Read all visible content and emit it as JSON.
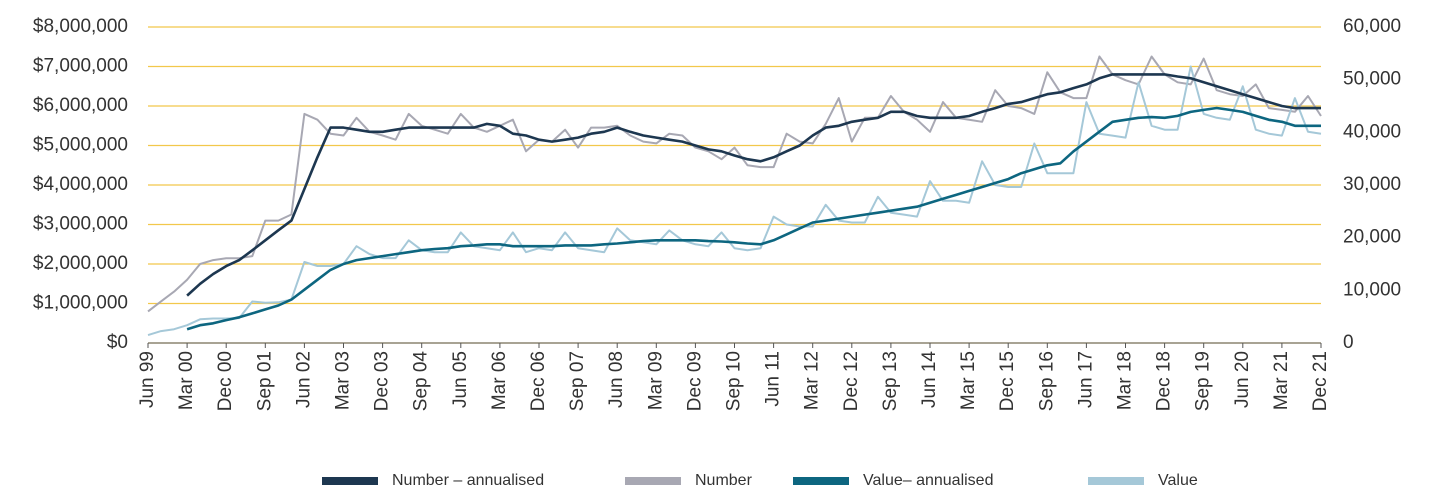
{
  "chart_data": {
    "type": "line",
    "categories": [
      "Jun 99",
      null,
      null,
      "Mar 00",
      null,
      null,
      "Dec 00",
      null,
      null,
      "Sep 01",
      null,
      null,
      "Jun 02",
      null,
      null,
      "Mar 03",
      null,
      null,
      "Dec 03",
      null,
      null,
      "Sep 04",
      null,
      null,
      "Jun 05",
      null,
      null,
      "Mar 06",
      null,
      null,
      "Dec 06",
      null,
      null,
      "Sep 07",
      null,
      null,
      "Jun 08",
      null,
      null,
      "Mar 09",
      null,
      null,
      "Dec 09",
      null,
      null,
      "Sep 10",
      null,
      null,
      "Jun 11",
      null,
      null,
      "Mar 12",
      null,
      null,
      "Dec 12",
      null,
      null,
      "Sep 13",
      null,
      null,
      "Jun 14",
      null,
      null,
      "Mar 15",
      null,
      null,
      "Dec 15",
      null,
      null,
      "Sep 16",
      null,
      null,
      "Jun 17",
      null,
      null,
      "Mar 18",
      null,
      null,
      "Dec 18",
      null,
      null,
      "Sep 19",
      null,
      null,
      "Jun 20",
      null,
      null,
      "Mar 21",
      null,
      null,
      "Dec 21"
    ],
    "series": [
      {
        "name": "Number – annualised",
        "color": "#1d3750",
        "axis": "y2",
        "values": [
          null,
          null,
          null,
          9000,
          11250,
          13100,
          14600,
          15750,
          17600,
          19500,
          21400,
          23250,
          29250,
          35250,
          40900,
          40900,
          40500,
          40100,
          40100,
          40500,
          40900,
          40900,
          40900,
          40900,
          40900,
          40900,
          41600,
          41250,
          39750,
          39400,
          38600,
          38250,
          38600,
          39000,
          39750,
          40100,
          40900,
          40100,
          39400,
          39000,
          38600,
          38250,
          37500,
          36750,
          36400,
          35600,
          34900,
          34500,
          35250,
          36400,
          37500,
          39400,
          40900,
          41250,
          42000,
          42400,
          42750,
          43900,
          43900,
          43100,
          42750,
          42750,
          42750,
          43100,
          43900,
          44600,
          45400,
          45750,
          46500,
          47250,
          47600,
          48400,
          49100,
          50250,
          51000,
          51000,
          51000,
          51000,
          51000,
          50600,
          50250,
          49500,
          48750,
          48000,
          47250,
          46500,
          45750,
          45000,
          44600,
          44600,
          44600
        ]
      },
      {
        "name": "Number",
        "color": "#a8a8b3",
        "axis": "y2",
        "values": [
          6000,
          7900,
          9750,
          12000,
          15000,
          15750,
          16100,
          16100,
          16500,
          23250,
          23250,
          24400,
          43500,
          42400,
          39750,
          39400,
          42750,
          40100,
          39400,
          38600,
          43500,
          41250,
          40500,
          39750,
          43500,
          40900,
          40100,
          41250,
          42400,
          36400,
          38600,
          38250,
          40500,
          37100,
          40900,
          40900,
          41250,
          39400,
          38250,
          37900,
          39750,
          39400,
          37100,
          36400,
          34900,
          37100,
          33750,
          33400,
          33400,
          39750,
          38250,
          37900,
          41600,
          46500,
          38250,
          42750,
          42750,
          46900,
          43900,
          42400,
          40100,
          45750,
          42750,
          42400,
          42000,
          48000,
          45000,
          44600,
          43500,
          51400,
          47600,
          46500,
          46500,
          54400,
          51000,
          49900,
          49100,
          54400,
          51000,
          49500,
          49100,
          54000,
          48000,
          47250,
          46900,
          49100,
          44600,
          44250,
          43900,
          46900,
          43100
        ]
      },
      {
        "name": "Value– annualised",
        "color": "#0d6680",
        "values": [
          null,
          null,
          null,
          350000,
          450000,
          500000,
          580000,
          650000,
          750000,
          850000,
          950000,
          1100000,
          1350000,
          1600000,
          1850000,
          2000000,
          2100000,
          2150000,
          2200000,
          2250000,
          2300000,
          2350000,
          2380000,
          2400000,
          2450000,
          2470000,
          2500000,
          2500000,
          2450000,
          2450000,
          2450000,
          2450000,
          2470000,
          2470000,
          2470000,
          2500000,
          2520000,
          2550000,
          2580000,
          2600000,
          2600000,
          2600000,
          2600000,
          2580000,
          2570000,
          2550000,
          2520000,
          2500000,
          2600000,
          2750000,
          2900000,
          3050000,
          3100000,
          3150000,
          3200000,
          3250000,
          3300000,
          3350000,
          3400000,
          3450000,
          3550000,
          3650000,
          3750000,
          3850000,
          3950000,
          4050000,
          4150000,
          4300000,
          4400000,
          4500000,
          4550000,
          4850000,
          5100000,
          5350000,
          5600000,
          5650000,
          5700000,
          5720000,
          5700000,
          5750000,
          5850000,
          5900000,
          5950000,
          5900000,
          5850000,
          5750000,
          5650000,
          5600000,
          5500000,
          5500000,
          5500000
        ]
      },
      {
        "name": "Value",
        "color": "#a5c8d8",
        "values": [
          200000,
          300000,
          350000,
          450000,
          600000,
          620000,
          620000,
          630000,
          1050000,
          1020000,
          1030000,
          1100000,
          2050000,
          1950000,
          1950000,
          2000000,
          2450000,
          2250000,
          2150000,
          2150000,
          2600000,
          2350000,
          2300000,
          2300000,
          2800000,
          2450000,
          2400000,
          2350000,
          2800000,
          2300000,
          2400000,
          2350000,
          2800000,
          2400000,
          2350000,
          2300000,
          2900000,
          2600000,
          2550000,
          2500000,
          2850000,
          2600000,
          2500000,
          2450000,
          2800000,
          2400000,
          2350000,
          2400000,
          3200000,
          3000000,
          2950000,
          2950000,
          3500000,
          3100000,
          3050000,
          3050000,
          3700000,
          3300000,
          3250000,
          3200000,
          4100000,
          3600000,
          3600000,
          3550000,
          4600000,
          4000000,
          3950000,
          3950000,
          5050000,
          4300000,
          4300000,
          4300000,
          6100000,
          5300000,
          5250000,
          5200000,
          6600000,
          5500000,
          5400000,
          5400000,
          7000000,
          5800000,
          5700000,
          5650000,
          6500000,
          5400000,
          5300000,
          5250000,
          6200000,
          5350000,
          5300000
        ]
      }
    ],
    "ylim": [
      0,
      8000000
    ],
    "yticks": [
      {
        "value": 0,
        "label": "$0"
      },
      {
        "value": 1000000,
        "label": "$1,000,000"
      },
      {
        "value": 2000000,
        "label": "$2,000,000"
      },
      {
        "value": 3000000,
        "label": "$3,000,000"
      },
      {
        "value": 4000000,
        "label": "$4,000,000"
      },
      {
        "value": 5000000,
        "label": "$5,000,000"
      },
      {
        "value": 6000000,
        "label": "$6,000,000"
      },
      {
        "value": 7000000,
        "label": "$7,000,000"
      },
      {
        "value": 8000000,
        "label": "$8,000,000"
      }
    ],
    "y2lim": [
      0,
      60000
    ],
    "y2ticks": [
      0,
      {
        "value": 10000,
        "label": "10,000"
      },
      {
        "value": 20000,
        "label": "20,000"
      },
      {
        "value": 30000,
        "label": "30,000"
      },
      {
        "value": 40000,
        "label": "40,000"
      },
      {
        "value": 50000,
        "label": "50,000"
      },
      {
        "value": 60000,
        "label": "60,000"
      }
    ],
    "grid": true,
    "grid_color": "#f2c84b",
    "legend": "bottom"
  }
}
